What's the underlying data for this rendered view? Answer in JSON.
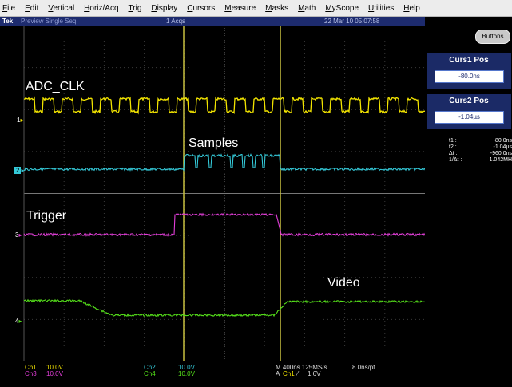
{
  "menu": [
    "File",
    "Edit",
    "Vertical",
    "Horiz/Acq",
    "Trig",
    "Display",
    "Cursors",
    "Measure",
    "Masks",
    "Math",
    "MyScope",
    "Utilities",
    "Help"
  ],
  "status": {
    "brand": "Tek",
    "mode": "Preview   Single Seq",
    "acqs": "1 Acqs",
    "datetime": "22 Mar 10 05:07:58"
  },
  "buttons_label": "Buttons",
  "cursors": {
    "curs1": {
      "title": "Curs1 Pos",
      "value": "-80.0ns"
    },
    "curs2": {
      "title": "Curs2 Pos",
      "value": "-1.04µs"
    }
  },
  "readout": [
    {
      "label": "t1 :",
      "value": "-80.0ns"
    },
    {
      "label": "t2 :",
      "value": "-1.04µs"
    },
    {
      "label": "Δt :",
      "value": "-960.0ns"
    },
    {
      "label": "1/Δt :",
      "value": "1.042MH"
    }
  ],
  "labels": {
    "adc_clk": "ADC_CLK",
    "samples": "Samples",
    "trigger": "Trigger",
    "video": "Video"
  },
  "channel_markers": [
    "1",
    "2",
    "3",
    "4"
  ],
  "bottom": {
    "ch1_name": "Ch1",
    "ch1_scale": "10.0V",
    "ch2_name": "Ch2",
    "ch2_scale": "10.0V",
    "ch3_name": "Ch3",
    "ch3_scale": "10.0V",
    "ch4_name": "Ch4",
    "ch4_scale": "10.0V",
    "timebase": "M 400ns 125MS/s",
    "resolution": "8.0ns/pt",
    "trig_prefix": "A",
    "trig_source": "Ch1",
    "trig_slope": "⁄",
    "trig_level": "1.6V"
  },
  "colors": {
    "ch1": "#f2e400",
    "ch2": "#34c9d8",
    "ch3": "#e33ed9",
    "ch4": "#55e01a",
    "cursor": "#c8c040"
  }
}
